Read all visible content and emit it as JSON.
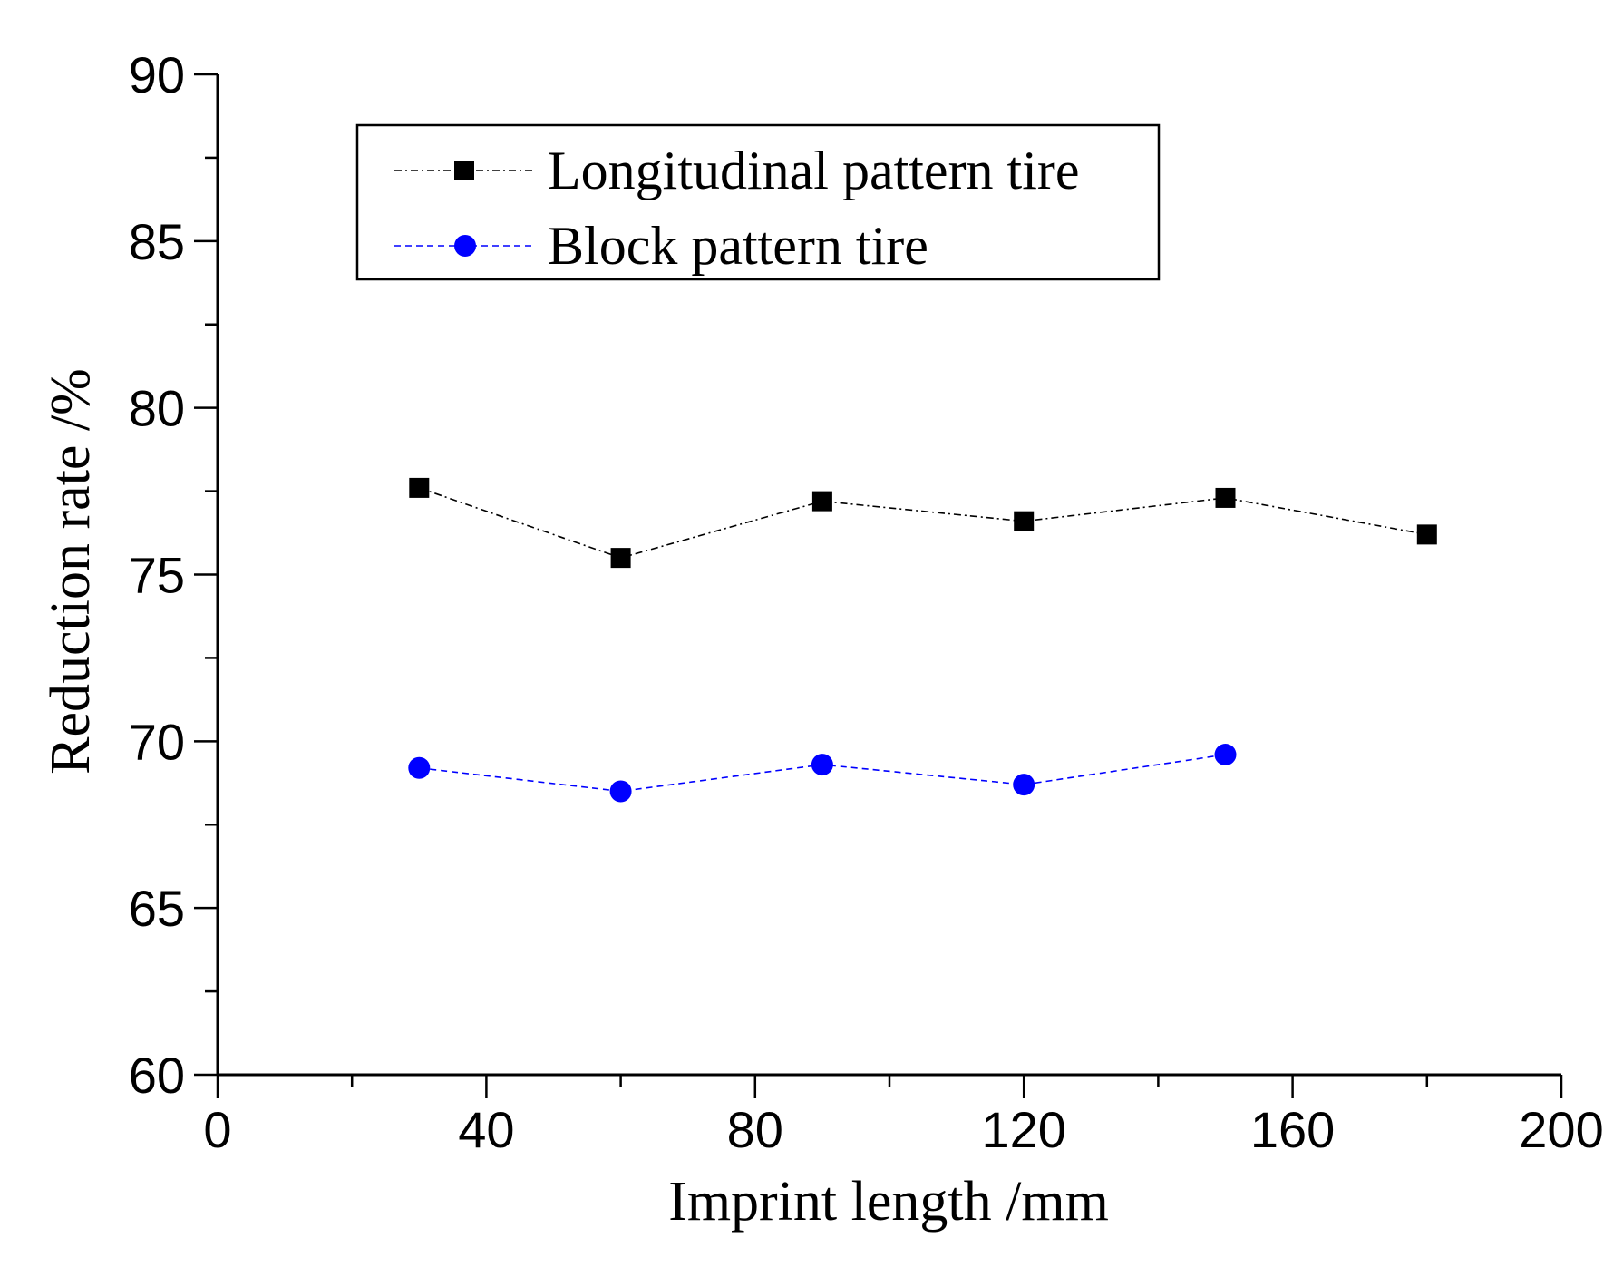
{
  "chart_data": {
    "type": "line",
    "title": "",
    "xlabel": "Imprint length /mm",
    "ylabel": "Reduction rate /%",
    "xlim": [
      0,
      200
    ],
    "ylim": [
      60,
      90
    ],
    "xticks": [
      "0",
      "40",
      "80",
      "120",
      "160",
      "200"
    ],
    "yticks": [
      "60",
      "65",
      "70",
      "75",
      "80",
      "85",
      "90"
    ],
    "grid": false,
    "legend_position": "top-center",
    "series": [
      {
        "name": "Longitudinal pattern tire",
        "color": "#000000",
        "marker": "square",
        "line_style": "dash-dot",
        "x": [
          30,
          60,
          90,
          120,
          150,
          180
        ],
        "y": [
          77.6,
          75.5,
          77.2,
          76.6,
          77.3,
          76.2
        ]
      },
      {
        "name": "Block pattern tire",
        "color": "#0000ff",
        "marker": "circle",
        "line_style": "dashed",
        "x": [
          30,
          60,
          90,
          120,
          150
        ],
        "y": [
          69.2,
          68.5,
          69.3,
          68.7,
          69.6
        ]
      }
    ]
  }
}
